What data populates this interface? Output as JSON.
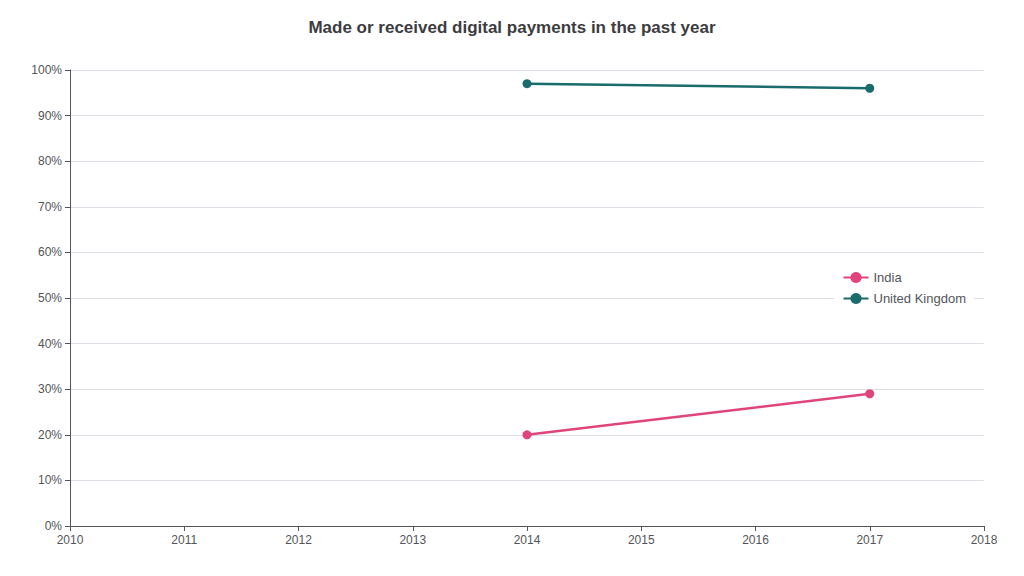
{
  "chart_data": {
    "type": "line",
    "title": "Made or received digital payments in the past year",
    "x": [
      2014,
      2017
    ],
    "series": [
      {
        "name": "India",
        "color": "#e0457a",
        "values": [
          20,
          29
        ],
        "marker": "circle"
      },
      {
        "name": "United Kingdom",
        "color": "#1a6b6b",
        "values": [
          97,
          96
        ],
        "marker": "circle"
      }
    ],
    "xlim": [
      2010,
      2018
    ],
    "xticks": [
      2010,
      2011,
      2012,
      2013,
      2014,
      2015,
      2016,
      2017,
      2018
    ],
    "ylim": [
      0,
      100
    ],
    "yticks": [
      {
        "value": 0,
        "label": "0%"
      },
      {
        "value": 10,
        "label": "10%"
      },
      {
        "value": 20,
        "label": "20%"
      },
      {
        "value": 30,
        "label": "30%"
      },
      {
        "value": 40,
        "label": "40%"
      },
      {
        "value": 50,
        "label": "50%"
      },
      {
        "value": 60,
        "label": "60%"
      },
      {
        "value": 70,
        "label": "70%"
      },
      {
        "value": 80,
        "label": "80%"
      },
      {
        "value": 90,
        "label": "90%"
      },
      {
        "value": 100,
        "label": "100%"
      }
    ],
    "grid": true,
    "legend": "right"
  }
}
